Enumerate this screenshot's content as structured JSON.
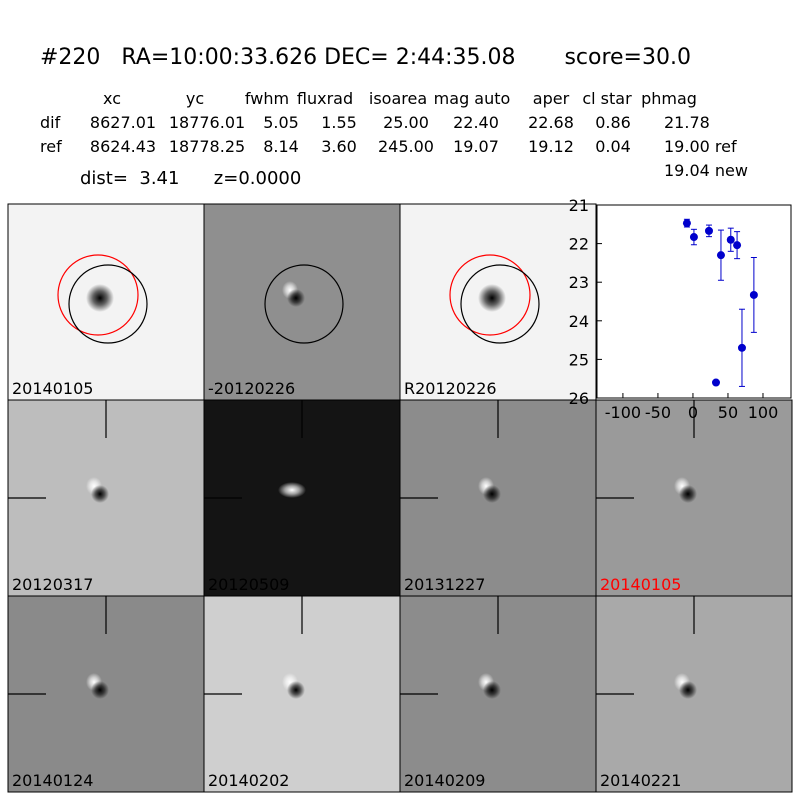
{
  "header": {
    "title": "#220   RA=10:00:33.626 DEC= 2:44:35.08       score=30.0",
    "dist_line": "dist=  3.41      z=0.0000",
    "new_mag": "19.04 new"
  },
  "table": {
    "columns": [
      "xc",
      "yc",
      "fwhm",
      "fluxrad",
      "isoarea",
      "mag auto",
      "aper",
      "cl star",
      "phmag"
    ],
    "rows": [
      [
        "dif",
        "8627.01",
        "18776.01",
        "5.05",
        "1.55",
        "25.00",
        "22.40",
        "22.68",
        "0.86",
        "21.78"
      ],
      [
        "ref",
        "8624.43",
        "18778.25",
        "8.14",
        "3.60",
        "245.00",
        "19.07",
        "19.12",
        "0.04",
        "19.00 ref"
      ]
    ]
  },
  "panels": [
    {
      "label": "20140105"
    },
    {
      "label": "-20120226"
    },
    {
      "label": "R20120226"
    },
    {
      "label": "20120317"
    },
    {
      "label": "20120509"
    },
    {
      "label": "20131227"
    },
    {
      "label": "20140105",
      "label_color": "#ff0000"
    },
    {
      "label": "20140124"
    },
    {
      "label": "20140202"
    },
    {
      "label": "20140209"
    },
    {
      "label": "20140221"
    }
  ],
  "chart_data": {
    "type": "scatter",
    "x": [
      -8.6,
      1.4,
      22.9,
      32.9,
      40,
      54,
      63,
      70,
      87
    ],
    "values": [
      21.47,
      21.83,
      21.67,
      25.6,
      22.3,
      21.9,
      22.04,
      24.7,
      23.33
    ],
    "errors": [
      0.1,
      0.2,
      0.15,
      0.05,
      0.65,
      0.3,
      0.35,
      1.0,
      0.97
    ],
    "color": "#0000cc",
    "xlim": [
      -137,
      140
    ],
    "ylim": [
      21,
      26
    ],
    "y_inverted": true,
    "xticks": [
      -100,
      -50,
      0,
      50,
      100
    ],
    "yticks": [
      21,
      22,
      23,
      24,
      25,
      26
    ]
  }
}
